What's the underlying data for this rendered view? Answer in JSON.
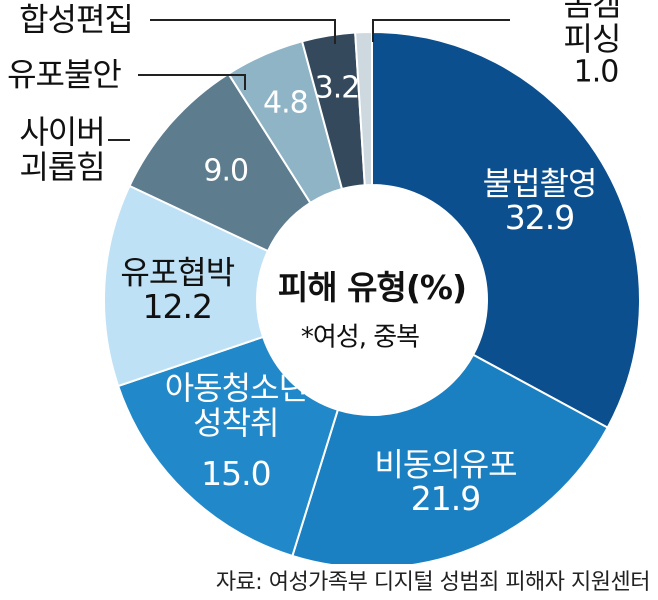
{
  "chart_data": {
    "type": "donut",
    "title": "피해 유형(%)",
    "subtitle": "*여성, 중복",
    "source": "자료: 여성가족부 디지털 성범죄 피해자 지원센터",
    "categories": [
      "불법촬영",
      "비동의유포",
      "아동청소년\n성착취",
      "유포협박",
      "사이버\n괴롭힘",
      "유포불안",
      "합성편집",
      "몸캠피싱"
    ],
    "values": [
      32.9,
      21.9,
      15.0,
      12.2,
      9.0,
      4.8,
      3.2,
      1.0
    ],
    "value_labels": [
      "32.9",
      "21.9",
      "15.0",
      "12.2",
      "9.0",
      "4.8",
      "3.2",
      "1.0"
    ],
    "colors": [
      "#0b4f8e",
      "#1a80c2",
      "#2189c9",
      "#bfe1f5",
      "#5d7c8e",
      "#8fb4c6",
      "#34495c",
      "#cdd8df"
    ]
  }
}
